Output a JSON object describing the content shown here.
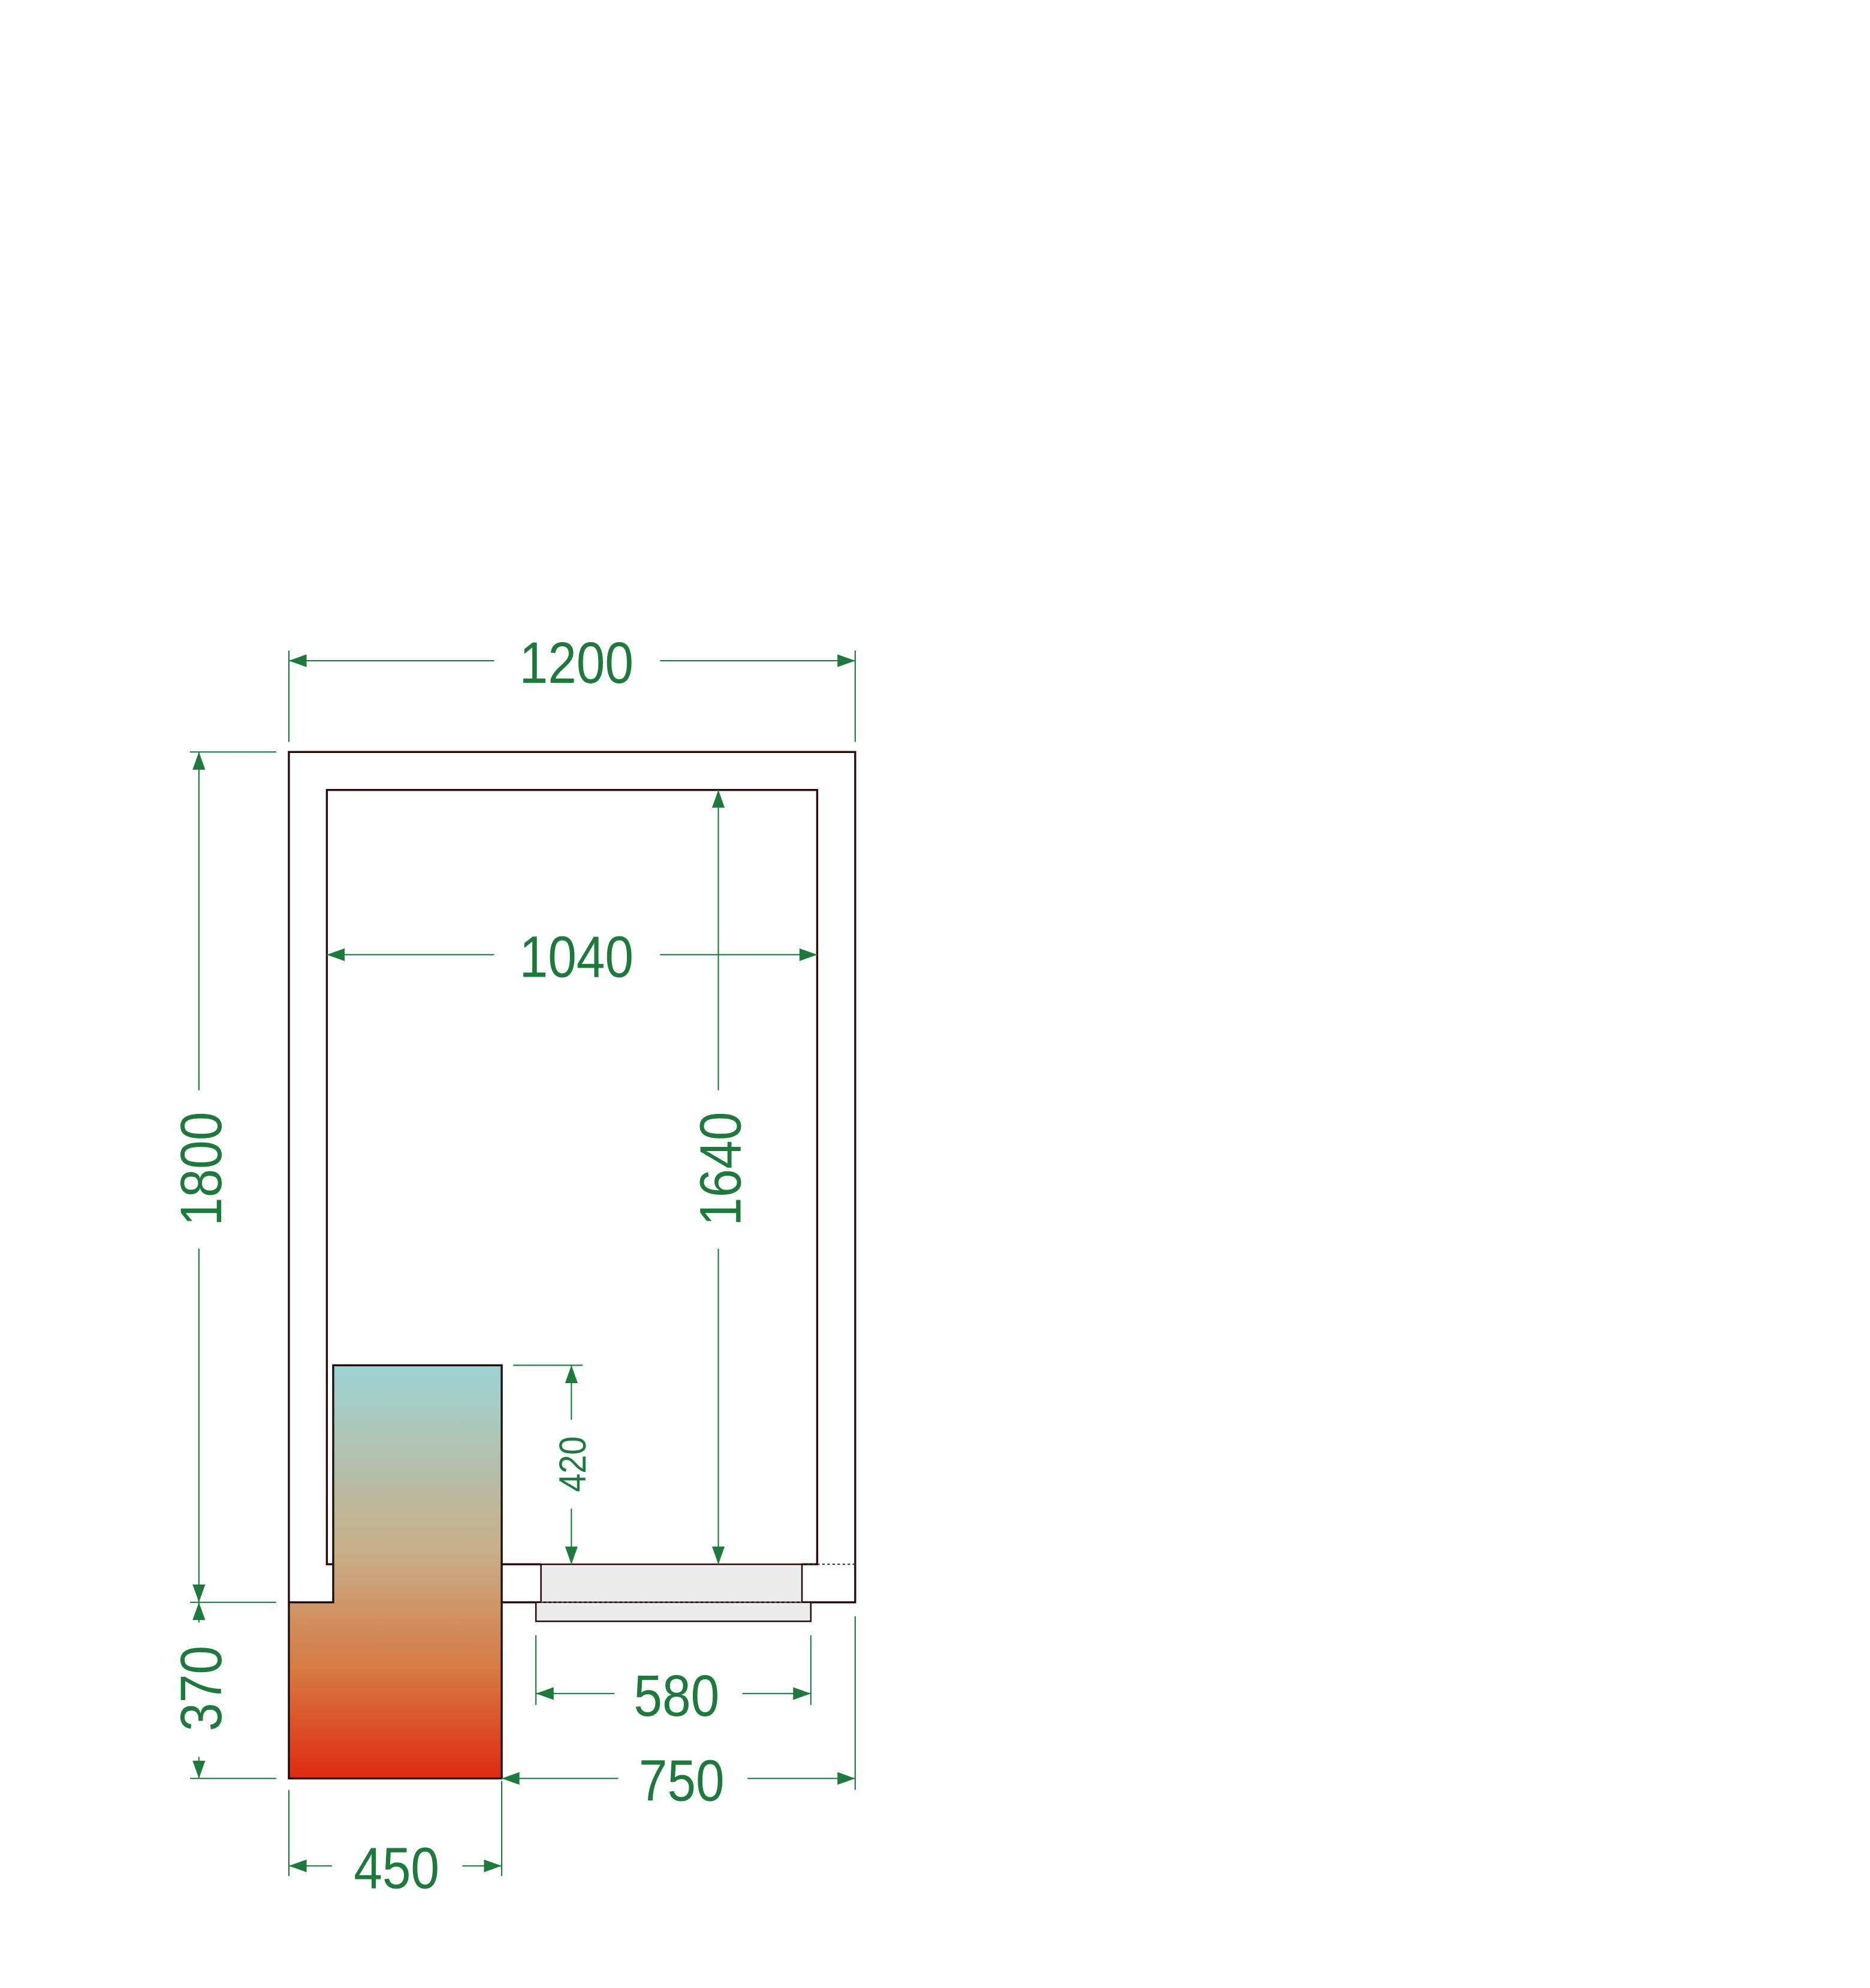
{
  "drawing": {
    "dimensions": {
      "outer_width": "1200",
      "inner_width": "1040",
      "outer_depth": "1800",
      "inner_depth": "1640",
      "unit_height": "420",
      "step_depth": "370",
      "door_width": "580",
      "right_offset": "750",
      "unit_width": "450"
    },
    "colors": {
      "dimension": "#1d7a3c",
      "gradient_top": "#9dd3d3",
      "gradient_mid": "#c8ae88",
      "gradient_bottom": "#e02a12",
      "door_fill": "#ececec"
    }
  }
}
